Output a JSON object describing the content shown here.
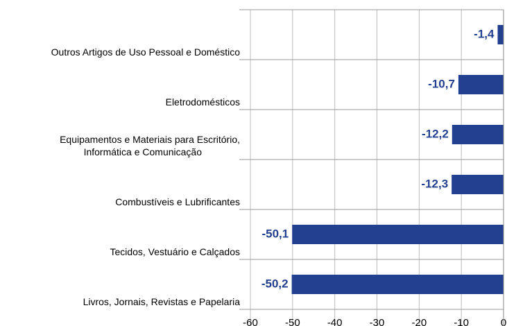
{
  "chart_data": {
    "type": "bar",
    "orientation": "horizontal",
    "categories": [
      "Outros Artigos de Uso Pessoal e Doméstico",
      "Eletrodomésticos",
      "Equipamentos e Materiais para Escritório,\nInformática e Comunicação",
      "Combustíveis e Lubrificantes",
      "Tecidos, Vestuário e Calçados",
      "Livros, Jornais, Revistas e Papelaria"
    ],
    "values": [
      -1.4,
      -10.7,
      -12.2,
      -12.3,
      -50.1,
      -50.2
    ],
    "value_labels": [
      "-1,4",
      "-10,7",
      "-12,2",
      "-12,3",
      "-50,1",
      "-50,2"
    ],
    "color": "#233f8f",
    "xlim": [
      -60,
      0
    ],
    "xticks": [
      -60,
      -50,
      -40,
      -30,
      -20,
      -10,
      0
    ],
    "grid": true
  }
}
